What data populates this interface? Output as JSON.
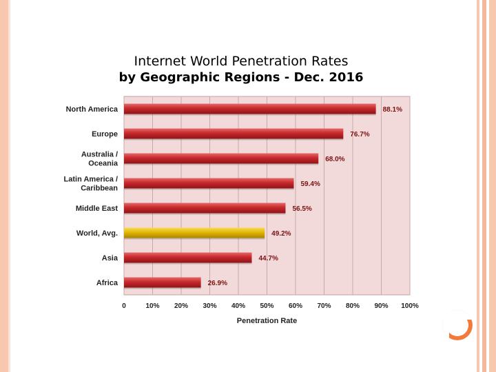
{
  "colors": {
    "plot_bg": "#f3dada",
    "grid": "#c9a9a9",
    "bar": "#c8282c",
    "bar_highlight": "#e3c100",
    "frame": "#f7c7b0",
    "accent_orange": "#f27a3a"
  },
  "chart_data": {
    "type": "bar",
    "orientation": "horizontal",
    "title_line1": "Internet World Penetration Rates",
    "title_line2": "by Geographic Regions - Dec. 2016",
    "xlabel": "Penetration Rate",
    "ylabel": "",
    "xlim": [
      0,
      100
    ],
    "x_ticks": [
      "0",
      "10%",
      "20%",
      "30%",
      "40%",
      "50%",
      "60%",
      "70%",
      "80%",
      "90%",
      "100%"
    ],
    "grid": true,
    "categories": [
      [
        "North America"
      ],
      [
        "Europe"
      ],
      [
        "Australia /",
        "Oceania"
      ],
      [
        "Latin America /",
        "Caribbean"
      ],
      [
        "Middle East"
      ],
      [
        "World, Avg."
      ],
      [
        "Asia"
      ],
      [
        "Africa"
      ]
    ],
    "values": [
      88.1,
      76.7,
      68.0,
      59.4,
      56.5,
      49.2,
      44.7,
      26.9
    ],
    "value_labels": [
      "88.1%",
      "76.7%",
      "68.0%",
      "59.4%",
      "56.5%",
      "49.2%",
      "44.7%",
      "26.9%"
    ],
    "highlight_index": 5
  }
}
